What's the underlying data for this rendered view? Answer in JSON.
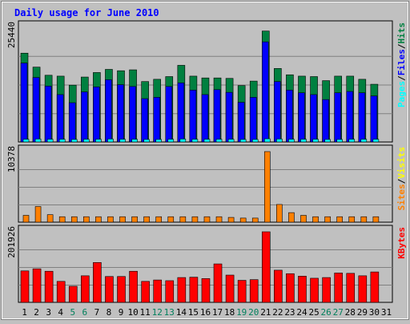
{
  "chart_data": {
    "type": "bar",
    "title": "Daily usage for June 2010",
    "categories": [
      "1",
      "2",
      "3",
      "4",
      "5",
      "6",
      "7",
      "8",
      "9",
      "10",
      "11",
      "12",
      "13",
      "14",
      "15",
      "16",
      "17",
      "18",
      "19",
      "20",
      "21",
      "22",
      "23",
      "24",
      "25",
      "26",
      "27",
      "28",
      "29",
      "30",
      "31"
    ],
    "weekend_days": [
      "5",
      "6",
      "12",
      "13",
      "19",
      "20",
      "26",
      "27"
    ],
    "panels": [
      {
        "id": "hits",
        "y_max_label": "25440",
        "ylim": [
          0,
          25440
        ],
        "legend": [
          "Pages",
          "/",
          "Files",
          "/",
          "Hits"
        ],
        "series": [
          {
            "name": "Hits",
            "color": "#008040",
            "values": [
              19700,
              16600,
              14800,
              14600,
              12600,
              14400,
              15400,
              16100,
              15800,
              16000,
              13400,
              13900,
              14500,
              17000,
              14600,
              14200,
              14200,
              14100,
              12500,
              13500,
              24600,
              16300,
              14900,
              14600,
              14500,
              13600,
              14600,
              14600,
              13900,
              12800,
              null
            ]
          },
          {
            "name": "Files",
            "color": "#0000ff",
            "values": [
              17500,
              14300,
              12400,
              10500,
              8700,
              11100,
              12200,
              13800,
              12700,
              12300,
              9600,
              9900,
              12300,
              13100,
              11500,
              10500,
              11600,
              11000,
              8800,
              9900,
              22200,
              13400,
              11500,
              10900,
              10500,
              9400,
              10900,
              11200,
              10900,
              10200,
              null
            ]
          },
          {
            "name": "Pages",
            "color": "#00ffff",
            "values": [
              600,
              650,
              600,
              600,
              550,
              600,
              600,
              650,
              600,
              600,
              550,
              550,
              600,
              650,
              600,
              600,
              600,
              600,
              550,
              550,
              700,
              650,
              600,
              600,
              600,
              550,
              550,
              600,
              600,
              600,
              null
            ]
          }
        ]
      },
      {
        "id": "sites",
        "y_max_label": "10378",
        "ylim": [
          0,
          10378
        ],
        "legend": [
          "Sites",
          "/",
          "Visits"
        ],
        "series": [
          {
            "name": "Visits",
            "color": "#ff8000",
            "values": [
              1000,
              2300,
              1100,
              800,
              800,
              800,
              800,
              800,
              800,
              800,
              800,
              800,
              800,
              800,
              800,
              800,
              800,
              700,
              600,
              600,
              10378,
              2600,
              1400,
              1000,
              800,
              800,
              800,
              800,
              800,
              800,
              null
            ]
          },
          {
            "name": "Sites",
            "color": "#ffff00",
            "values": [
              0,
              0,
              0,
              0,
              0,
              0,
              0,
              0,
              0,
              0,
              0,
              0,
              0,
              0,
              0,
              0,
              0,
              0,
              0,
              0,
              0,
              0,
              0,
              0,
              0,
              0,
              0,
              0,
              0,
              0,
              null
            ]
          }
        ]
      },
      {
        "id": "kbytes",
        "y_max_label": "201926",
        "ylim": [
          0,
          201926
        ],
        "legend": [
          "KBytes"
        ],
        "series": [
          {
            "name": "KBytes",
            "color": "#ff0000",
            "values": [
              90000,
              96000,
              89000,
              60000,
              46000,
              76000,
              114000,
              74000,
              74000,
              89000,
              60000,
              64000,
              62000,
              71000,
              72000,
              68000,
              110000,
              78000,
              63000,
              65000,
              201926,
              92000,
              82000,
              75000,
              69000,
              71000,
              84000,
              83000,
              76000,
              87000,
              null
            ]
          }
        ]
      }
    ],
    "colors": {
      "background": "#c0c0c0",
      "title": "#0000ff",
      "weekend_label": "#00805c",
      "weekday_label": "#000000",
      "grid": "#808080"
    }
  }
}
